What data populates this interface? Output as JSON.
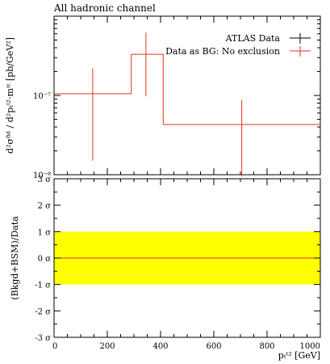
{
  "chart_data": [
    {
      "type": "line",
      "title": "All hadronic channel",
      "ylabel": "d²σᶠⁱᵈ / d²pₜᵗ²·mᵗᵗ [pb/GeV²]",
      "yscale": "log",
      "ylim": [
        1e-08,
        1e-06
      ],
      "xlim": [
        0,
        1000
      ],
      "ytick_labels": [
        "10⁻⁸",
        "10⁻⁷"
      ],
      "legend_position": "top-right",
      "series": [
        {
          "name": "ATLAS Data",
          "color": "#000000",
          "points": []
        },
        {
          "name": "Data as BG: No exclusion",
          "color": "#e8321e",
          "bins": [
            {
              "xlo": 0,
              "xhi": 290,
              "x": 145,
              "y": 1.05e-07,
              "ylo": 1.5e-08,
              "yhi": 2.2e-07
            },
            {
              "xlo": 290,
              "xhi": 410,
              "x": 345,
              "y": 3.3e-07,
              "ylo": 9.8e-08,
              "yhi": 6.2e-07
            },
            {
              "xlo": 410,
              "xhi": 1000,
              "x": 705,
              "y": 4.3e-08,
              "ylo": 9.5e-09,
              "yhi": 8.8e-08
            }
          ]
        }
      ]
    },
    {
      "type": "line",
      "ylabel": "(Bkgd+BSM)/Data",
      "xlabel": "pₜᵗ² [GeV]",
      "xlim": [
        0,
        1000
      ],
      "ylim": [
        -3,
        3
      ],
      "x_ticks": [
        0,
        200,
        400,
        600,
        800,
        1000
      ],
      "x_tick_labels": [
        "0",
        "200",
        "400",
        "600",
        "800",
        "1000"
      ],
      "y_ticks": [
        -3,
        -2,
        -1,
        0,
        1,
        2,
        3
      ],
      "y_tick_labels": [
        "-3 σ",
        "-2 σ",
        "-1 σ",
        "0 σ",
        "1 σ",
        "2 σ",
        "3 σ"
      ],
      "band": {
        "from": -1,
        "to": 1,
        "color": "#ffff00"
      },
      "series": [
        {
          "name": "",
          "color": "#e8321e",
          "x": [
            0,
            1000
          ],
          "y": [
            0,
            0
          ]
        }
      ]
    }
  ]
}
